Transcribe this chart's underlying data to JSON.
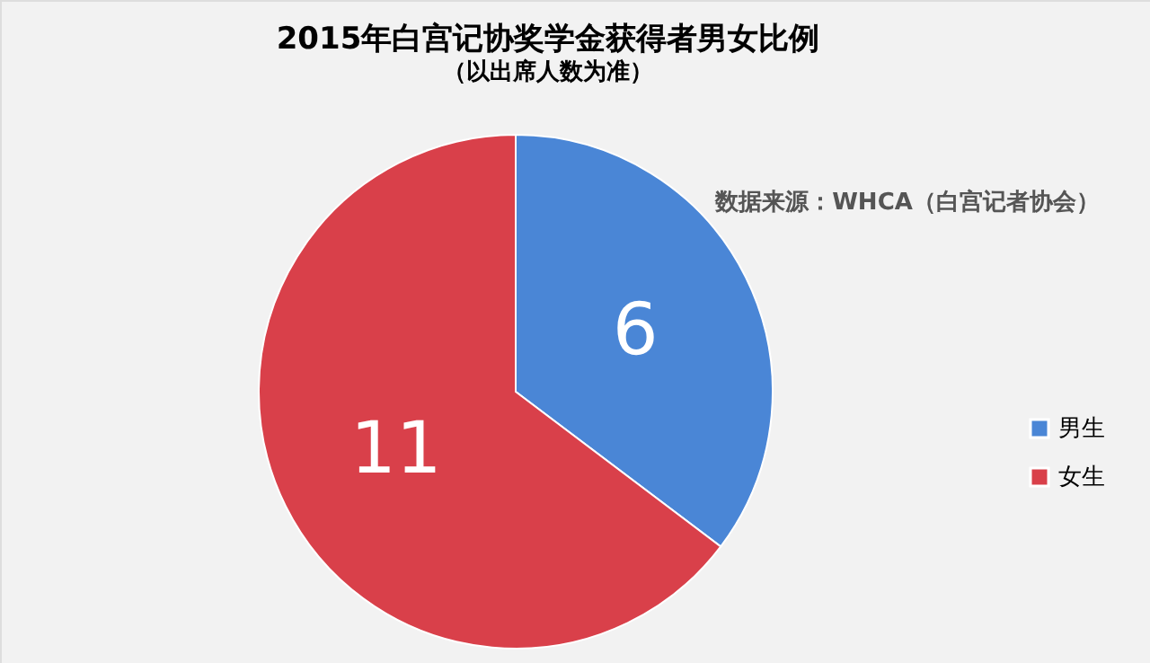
{
  "chart_data": {
    "type": "pie",
    "title": "2015年白宫记协奖学金获得者男女比例",
    "subtitle": "（以出席人数为准）",
    "categories": [
      "男生",
      "女生"
    ],
    "values": [
      6,
      11
    ],
    "colors": [
      "#4a86d6",
      "#d9404a"
    ],
    "data_labels": true,
    "legend": "right",
    "annotations": [
      "数据来源：WHCA（白宫记者协会）"
    ]
  }
}
